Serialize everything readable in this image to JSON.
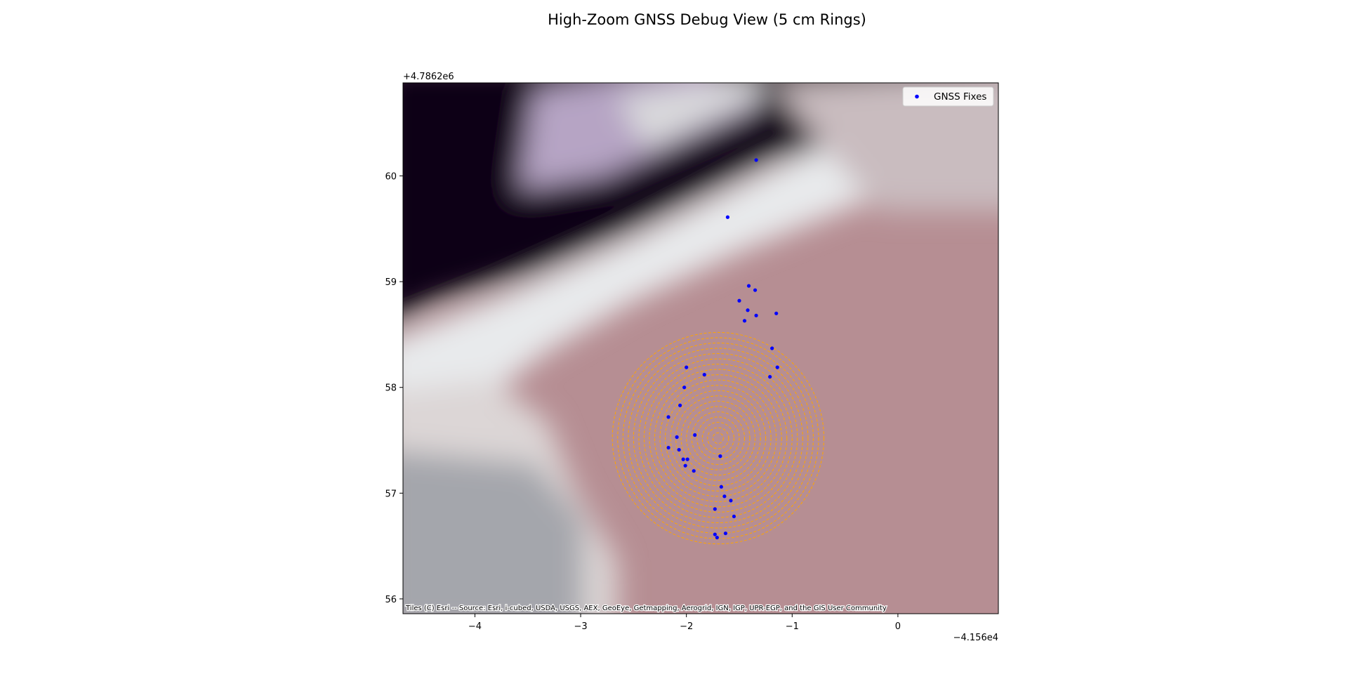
{
  "chart_data": {
    "type": "scatter",
    "title": "High-Zoom GNSS Debug View (5 cm Rings)",
    "x_offset_label": "−4.156e4",
    "y_offset_label": "+4.7862e6",
    "xlim": [
      -4.68,
      0.95
    ],
    "ylim": [
      55.86,
      60.88
    ],
    "xticks": [
      -4,
      -3,
      -2,
      -1,
      0
    ],
    "xtick_labels": [
      "−4",
      "−3",
      "−2",
      "−1",
      "0"
    ],
    "yticks": [
      56,
      57,
      58,
      59,
      60
    ],
    "ytick_labels": [
      "56",
      "57",
      "58",
      "59",
      "60"
    ],
    "legend_position": "top-right",
    "basemap_attribution": "Tiles (C) Esri -- Source: Esri, i-cubed, USDA, USGS, AEX, GeoEye, Getmapping, Aerogrid, IGN, IGP, UPR-EGP, and the GIS User Community",
    "rings": {
      "center_x": -1.7,
      "center_y": 57.52,
      "spacing": 0.05,
      "count": 20,
      "color": "#FFA500"
    },
    "series": [
      {
        "name": "GNSS Fixes",
        "color": "#0000FF",
        "points": [
          [
            -1.34,
            60.15
          ],
          [
            -1.61,
            59.61
          ],
          [
            -1.41,
            58.96
          ],
          [
            -1.35,
            58.92
          ],
          [
            -1.5,
            58.82
          ],
          [
            -1.42,
            58.73
          ],
          [
            -1.15,
            58.7
          ],
          [
            -1.34,
            58.68
          ],
          [
            -1.45,
            58.63
          ],
          [
            -1.19,
            58.37
          ],
          [
            -1.14,
            58.19
          ],
          [
            -2.0,
            58.19
          ],
          [
            -1.83,
            58.12
          ],
          [
            -1.21,
            58.1
          ],
          [
            -2.02,
            58.0
          ],
          [
            -2.06,
            57.83
          ],
          [
            -2.17,
            57.72
          ],
          [
            -1.92,
            57.55
          ],
          [
            -2.09,
            57.53
          ],
          [
            -2.17,
            57.43
          ],
          [
            -2.07,
            57.41
          ],
          [
            -1.68,
            57.35
          ],
          [
            -2.03,
            57.32
          ],
          [
            -1.99,
            57.32
          ],
          [
            -2.01,
            57.26
          ],
          [
            -1.93,
            57.21
          ],
          [
            -1.67,
            57.06
          ],
          [
            -1.64,
            56.97
          ],
          [
            -1.58,
            56.93
          ],
          [
            -1.73,
            56.85
          ],
          [
            -1.55,
            56.78
          ],
          [
            -1.63,
            56.62
          ],
          [
            -1.73,
            56.61
          ],
          [
            -1.71,
            56.58
          ]
        ]
      }
    ]
  }
}
